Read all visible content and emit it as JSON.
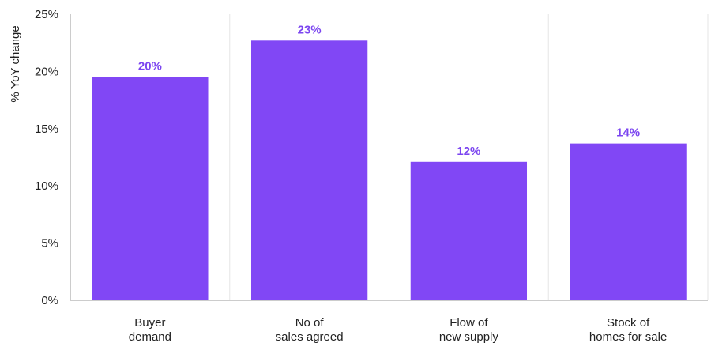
{
  "chart_data": {
    "type": "bar",
    "title": "",
    "ylabel": "% YoY change",
    "xlabel": "",
    "ylim": [
      0,
      25
    ],
    "yticks": [
      0,
      5,
      10,
      15,
      20,
      25
    ],
    "ytick_labels": [
      "0%",
      "5%",
      "10%",
      "15%",
      "20%",
      "25%"
    ],
    "categories": [
      [
        "Buyer",
        "demand"
      ],
      [
        "No of",
        "sales agreed"
      ],
      [
        "Flow of",
        "new supply"
      ],
      [
        "Stock of",
        "homes for sale"
      ]
    ],
    "values": [
      19.5,
      22.7,
      12.1,
      13.7
    ],
    "data_labels": [
      "20%",
      "23%",
      "12%",
      "14%"
    ],
    "grid": "vertical separators between categories",
    "legend": "none",
    "colors": {
      "bar": "#8147F5",
      "label": "#7B45F0",
      "axis": "#9a9a9a",
      "separator": "#e6e6e6"
    }
  }
}
